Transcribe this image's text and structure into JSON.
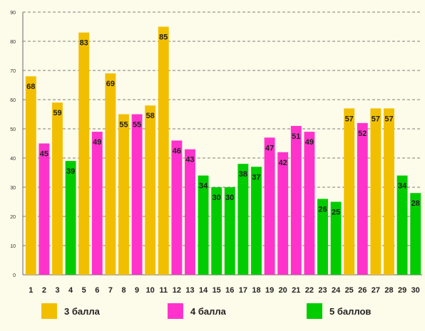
{
  "chart_data": {
    "type": "bar",
    "title": "",
    "xlabel": "",
    "ylabel": "",
    "ylim": [
      0,
      90
    ],
    "yticks": [
      0,
      10,
      20,
      30,
      40,
      50,
      60,
      70,
      80,
      90
    ],
    "grid": true,
    "categories": [
      "1",
      "2",
      "3",
      "4",
      "5",
      "6",
      "7",
      "8",
      "9",
      "10",
      "11",
      "12",
      "13",
      "14",
      "15",
      "16",
      "17",
      "18",
      "19",
      "20",
      "21",
      "22",
      "23",
      "24",
      "25",
      "26",
      "27",
      "28",
      "29",
      "30"
    ],
    "values": [
      68,
      45,
      59,
      39,
      83,
      49,
      69,
      55,
      55,
      58,
      85,
      46,
      43,
      34,
      30,
      30,
      38,
      37,
      47,
      42,
      51,
      49,
      26,
      25,
      57,
      52,
      57,
      57,
      34,
      28
    ],
    "groups": [
      "3",
      "4",
      "3",
      "5",
      "3",
      "4",
      "3",
      "3",
      "4",
      "3",
      "3",
      "4",
      "4",
      "5",
      "5",
      "5",
      "5",
      "5",
      "4",
      "4",
      "4",
      "4",
      "5",
      "5",
      "3",
      "4",
      "3",
      "3",
      "5",
      "5"
    ],
    "legend_position": "bottom",
    "legend": [
      {
        "key": "3",
        "label": "3 балла",
        "color": "#f2bf00"
      },
      {
        "key": "4",
        "label": "4 балла",
        "color": "#ff33cc"
      },
      {
        "key": "5",
        "label": "5 баллов",
        "color": "#00cc00"
      }
    ]
  }
}
